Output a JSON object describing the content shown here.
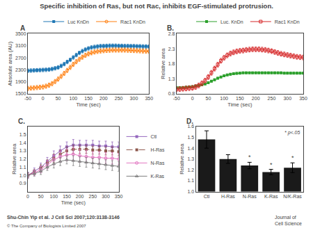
{
  "title": "Specific inhibition of Ras, but not Rac, inhibits EGF-stimulated protrusion.",
  "annotations": [
    {
      "text": "Shu-Chin Yip et al. J Cell Sci 2007;120:3138-3146"
    },
    {
      "text": "© The Company of Biologists Limited 2007"
    },
    {
      "text": "Journal of\nCell Science"
    }
  ],
  "chart_data": [
    {
      "type": "line",
      "title": "A",
      "xlabel": "Time (sec)",
      "ylabel": "Absolute area (AU)",
      "xlim": [
        -50,
        350
      ],
      "ylim": [
        1500,
        3500
      ],
      "xticks": [
        -50,
        0,
        50,
        100,
        150,
        200,
        250,
        300,
        350
      ],
      "yticks": [
        1500,
        1900,
        2300,
        2700,
        3100,
        3500
      ],
      "grid": false,
      "legend": "above",
      "series": [
        {
          "name": "Luc KnDn",
          "marker": "square",
          "line_style": "solid",
          "errors": 60,
          "x": [
            -50,
            -40,
            -30,
            -20,
            -10,
            0,
            10,
            20,
            30,
            40,
            50,
            60,
            70,
            80,
            90,
            100,
            110,
            120,
            130,
            140,
            150,
            160,
            170,
            180,
            190,
            200,
            210,
            220,
            230,
            240,
            250,
            260,
            270,
            280,
            290,
            300,
            310,
            320,
            330,
            340,
            350
          ],
          "values": [
            2270,
            2275,
            2280,
            2285,
            2290,
            2295,
            2300,
            2310,
            2325,
            2350,
            2380,
            2430,
            2490,
            2560,
            2630,
            2710,
            2790,
            2860,
            2920,
            2970,
            3010,
            3040,
            3060,
            3075,
            3085,
            3090,
            3095,
            3100,
            3100,
            3100,
            3095,
            3095,
            3090,
            3090,
            3085,
            3085,
            3080,
            3080,
            3075,
            3075,
            3070
          ]
        },
        {
          "name": "Rac1 KnDn",
          "marker": "circle-open",
          "line_style": "solid",
          "errors": 70,
          "x": [
            -50,
            -40,
            -30,
            -20,
            -10,
            0,
            10,
            20,
            30,
            40,
            50,
            60,
            70,
            80,
            90,
            100,
            110,
            120,
            130,
            140,
            150,
            160,
            170,
            180,
            190,
            200,
            210,
            220,
            230,
            240,
            250,
            260,
            270,
            280,
            290,
            300,
            310,
            320,
            330,
            340,
            350
          ],
          "values": [
            1680,
            1690,
            1700,
            1710,
            1720,
            1730,
            1755,
            1790,
            1840,
            1910,
            1990,
            2080,
            2180,
            2280,
            2380,
            2480,
            2570,
            2650,
            2720,
            2780,
            2830,
            2865,
            2890,
            2910,
            2925,
            2935,
            2945,
            2950,
            2955,
            2955,
            2955,
            2955,
            2955,
            2950,
            2945,
            2940,
            2935,
            2930,
            2925,
            2920,
            2915
          ]
        }
      ]
    },
    {
      "type": "line",
      "title": "B.",
      "xlabel": "Time (sec)",
      "ylabel": "Relative area",
      "xlim": [
        -50,
        350
      ],
      "ylim": [
        0.8,
        2.8
      ],
      "xticks": [
        -50,
        0,
        50,
        100,
        150,
        200,
        250,
        300,
        350
      ],
      "yticks": [
        0.8,
        1.3,
        1.8,
        2.3,
        2.8
      ],
      "grid": false,
      "legend": "above",
      "series": [
        {
          "name": "Luc. KnDn",
          "marker": "square",
          "line_style": "solid",
          "errors": 0.03,
          "x": [
            -50,
            -40,
            -30,
            -20,
            -10,
            0,
            10,
            20,
            30,
            40,
            50,
            60,
            70,
            80,
            90,
            100,
            110,
            120,
            130,
            140,
            150,
            160,
            170,
            180,
            190,
            200,
            210,
            220,
            230,
            240,
            250,
            260,
            270,
            280,
            290,
            300,
            310,
            320,
            330,
            340,
            350
          ],
          "values": [
            1.0,
            1.01,
            1.01,
            1.02,
            1.03,
            1.04,
            1.06,
            1.08,
            1.1,
            1.13,
            1.17,
            1.22,
            1.27,
            1.32,
            1.36,
            1.4,
            1.43,
            1.45,
            1.47,
            1.48,
            1.49,
            1.5,
            1.5,
            1.5,
            1.5,
            1.5,
            1.5,
            1.5,
            1.5,
            1.5,
            1.5,
            1.5,
            1.5,
            1.5,
            1.49,
            1.49,
            1.49,
            1.49,
            1.49,
            1.49,
            1.49
          ]
        },
        {
          "name": "Rac1 KnDn",
          "marker": "square-open",
          "line_style": "solid",
          "errors": 0.08,
          "x": [
            -50,
            -40,
            -30,
            -20,
            -10,
            0,
            10,
            20,
            30,
            40,
            50,
            60,
            70,
            80,
            90,
            100,
            110,
            120,
            130,
            140,
            150,
            160,
            170,
            180,
            190,
            200,
            210,
            220,
            230,
            240,
            250,
            260,
            270,
            280,
            290,
            300,
            310,
            320,
            330,
            340,
            350
          ],
          "values": [
            0.95,
            0.96,
            0.97,
            0.98,
            0.99,
            1.0,
            1.03,
            1.08,
            1.15,
            1.24,
            1.36,
            1.5,
            1.64,
            1.77,
            1.9,
            2.0,
            2.08,
            2.14,
            2.18,
            2.21,
            2.23,
            2.24,
            2.26,
            2.27,
            2.28,
            2.28,
            2.28,
            2.27,
            2.26,
            2.24,
            2.22,
            2.19,
            2.16,
            2.13,
            2.11,
            2.09,
            2.07,
            2.05,
            2.03,
            2.02,
            2.01
          ]
        }
      ]
    },
    {
      "type": "line",
      "title": "C.",
      "xlabel": "Time (sec)",
      "ylabel": "Relative area",
      "xlim": [
        0,
        350
      ],
      "ylim": [
        0.8,
        1.6
      ],
      "xticks": [
        0,
        50,
        100,
        150,
        200,
        250,
        300,
        350
      ],
      "yticks": [
        0.9,
        {
          "value": 1.0,
          "label": "1.0"
        },
        1.1,
        1.2,
        1.3,
        1.4,
        1.5
      ],
      "grid": false,
      "legend": "right",
      "series": [
        {
          "name": "Ctl",
          "marker": "square",
          "line_style": "solid",
          "x": [
            0,
            25,
            50,
            75,
            100,
            125,
            150,
            175,
            200,
            225,
            250,
            275,
            300,
            325,
            350
          ],
          "values": [
            1.0,
            1.05,
            1.1,
            1.17,
            1.24,
            1.3,
            1.35,
            1.37,
            1.37,
            1.37,
            1.37,
            1.36,
            1.36,
            1.35,
            1.35
          ],
          "errors": [
            0.04,
            0.04,
            0.05,
            0.05,
            0.06,
            0.06,
            0.06,
            0.07,
            0.06,
            0.06,
            0.06,
            0.06,
            0.06,
            0.06,
            0.06
          ]
        },
        {
          "name": "H-Ras",
          "marker": "square",
          "line_style": "dash",
          "x": [
            0,
            25,
            50,
            75,
            100,
            125,
            150,
            175,
            200,
            225,
            250,
            275,
            300,
            325,
            350
          ],
          "values": [
            1.0,
            1.04,
            1.09,
            1.15,
            1.21,
            1.26,
            1.3,
            1.32,
            1.32,
            1.32,
            1.31,
            1.31,
            1.3,
            1.3,
            1.29
          ],
          "errors": [
            0.03,
            0.03,
            0.04,
            0.04,
            0.05,
            0.05,
            0.05,
            0.05,
            0.05,
            0.05,
            0.05,
            0.05,
            0.05,
            0.05,
            0.05
          ]
        },
        {
          "name": "N-Ras",
          "marker": "circle-open",
          "line_style": "solid",
          "x": [
            0,
            25,
            50,
            75,
            100,
            125,
            150,
            175,
            200,
            225,
            250,
            275,
            300,
            325,
            350
          ],
          "values": [
            1.0,
            1.03,
            1.07,
            1.13,
            1.19,
            1.23,
            1.25,
            1.26,
            1.24,
            1.23,
            1.22,
            1.22,
            1.21,
            1.21,
            1.2
          ],
          "errors": [
            0.03,
            0.03,
            0.04,
            0.05,
            0.06,
            0.07,
            0.07,
            0.08,
            0.08,
            0.08,
            0.07,
            0.07,
            0.07,
            0.07,
            0.07
          ]
        },
        {
          "name": "K-Ras",
          "marker": "triangle-up-open",
          "line_style": "solid",
          "x": [
            0,
            25,
            50,
            75,
            100,
            125,
            150,
            175,
            200,
            225,
            250,
            275,
            300,
            325,
            350
          ],
          "values": [
            1.0,
            1.02,
            1.05,
            1.1,
            1.14,
            1.17,
            1.19,
            1.18,
            1.17,
            1.16,
            1.15,
            1.14,
            1.13,
            1.12,
            1.11
          ],
          "errors": [
            0.03,
            0.03,
            0.04,
            0.04,
            0.05,
            0.05,
            0.05,
            0.06,
            0.06,
            0.06,
            0.06,
            0.06,
            0.06,
            0.06,
            0.06
          ]
        }
      ]
    },
    {
      "type": "bar",
      "title": "D.",
      "ylabel": "Relative area",
      "categories": [
        "Ctl",
        "H-Ras",
        "N-Ras",
        "K-Ras",
        "N/K-Ras"
      ],
      "values": [
        1.48,
        1.3,
        1.24,
        1.18,
        1.22
      ],
      "errors": [
        0.08,
        0.04,
        0.03,
        0.025,
        0.045
      ],
      "color": "#1a1a1a",
      "ylim": [
        1.0,
        1.6
      ],
      "yticks": [
        {
          "value": 1.0,
          "label": "1.0"
        },
        1.1,
        1.2,
        1.3,
        1.4,
        1.5,
        1.6
      ],
      "grid": false,
      "annotations": [
        {
          "text": "* p<.05"
        },
        {
          "text": "*",
          "category": "N-Ras"
        },
        {
          "text": "*",
          "category": "K-Ras"
        },
        {
          "text": "*",
          "category": "N/K-Ras"
        }
      ]
    }
  ]
}
